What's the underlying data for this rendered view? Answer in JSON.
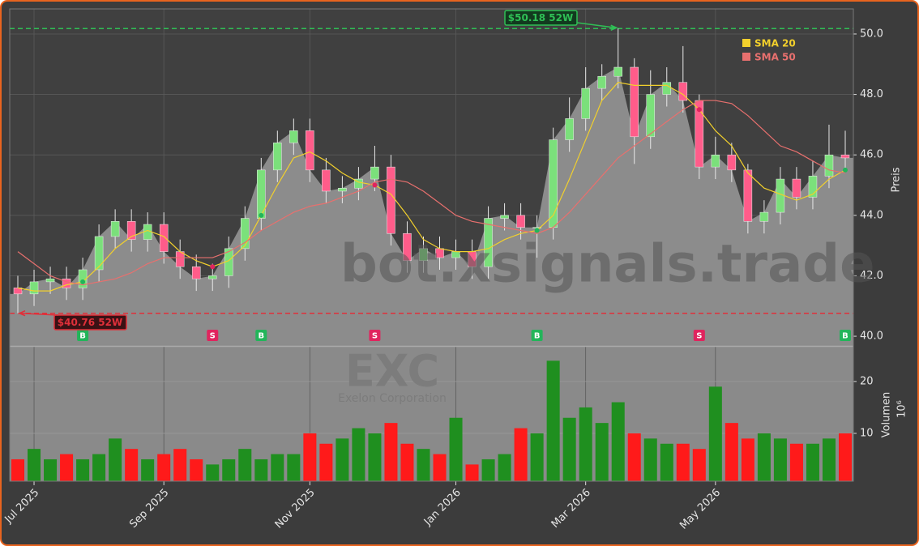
{
  "chart_data": {
    "type": "candlestick",
    "watermark": "bot.xsignals.trade",
    "categories": [
      null,
      "Jul 2025",
      null,
      null,
      null,
      null,
      null,
      null,
      null,
      "Sep 2025",
      null,
      null,
      null,
      null,
      null,
      null,
      null,
      null,
      "Nov 2025",
      null,
      null,
      null,
      null,
      null,
      null,
      null,
      null,
      "Jan 2026",
      null,
      null,
      null,
      null,
      null,
      null,
      null,
      "Mar 2026",
      null,
      null,
      null,
      null,
      null,
      null,
      null,
      "May 2026",
      null,
      null,
      null,
      null,
      null,
      null,
      null,
      null
    ],
    "open": [
      41.6,
      41.4,
      41.8,
      41.9,
      41.6,
      42.2,
      43.3,
      43.8,
      43.2,
      43.7,
      42.8,
      42.3,
      41.9,
      42.0,
      42.9,
      43.9,
      45.5,
      46.4,
      46.8,
      45.5,
      44.8,
      44.9,
      45.2,
      45.6,
      43.4,
      42.5,
      42.9,
      42.6,
      42.8,
      42.3,
      43.9,
      44.0,
      43.6,
      43.6,
      46.5,
      47.2,
      48.2,
      48.6,
      48.9,
      46.6,
      48.0,
      48.4,
      47.8,
      45.6,
      46.0,
      45.5,
      43.8,
      44.1,
      45.2,
      44.6,
      45.3,
      46.0
    ],
    "high": [
      42.0,
      42.2,
      42.3,
      42.3,
      42.6,
      43.7,
      44.2,
      44.2,
      44.1,
      44.1,
      43.2,
      42.7,
      42.4,
      43.3,
      44.3,
      45.9,
      46.8,
      47.2,
      47.2,
      45.9,
      45.3,
      45.6,
      46.3,
      46.0,
      43.8,
      43.3,
      43.3,
      43.2,
      43.2,
      44.3,
      44.4,
      44.4,
      44.0,
      46.9,
      47.9,
      48.9,
      49.0,
      50.18,
      49.2,
      48.8,
      48.9,
      49.6,
      48.0,
      46.6,
      46.4,
      45.7,
      44.5,
      45.6,
      45.6,
      45.8,
      47.0,
      46.8
    ],
    "low": [
      40.76,
      41.0,
      41.4,
      41.2,
      41.2,
      41.8,
      42.9,
      42.8,
      42.8,
      42.4,
      41.9,
      41.5,
      41.5,
      41.6,
      42.5,
      43.5,
      45.1,
      46.0,
      45.1,
      44.4,
      44.4,
      44.5,
      44.8,
      43.0,
      42.1,
      42.1,
      42.2,
      42.2,
      41.9,
      41.9,
      43.5,
      43.2,
      42.6,
      43.2,
      46.1,
      46.8,
      47.8,
      48.2,
      45.7,
      46.2,
      47.6,
      47.4,
      45.2,
      45.2,
      45.1,
      43.4,
      43.4,
      43.7,
      44.2,
      44.2,
      44.9,
      45.5
    ],
    "close": [
      41.4,
      41.8,
      41.9,
      41.6,
      42.2,
      43.3,
      43.8,
      43.2,
      43.7,
      42.8,
      42.3,
      41.9,
      42.0,
      42.9,
      43.9,
      45.5,
      46.4,
      46.8,
      45.5,
      44.8,
      44.9,
      45.2,
      45.6,
      43.4,
      42.5,
      42.9,
      42.6,
      42.8,
      42.3,
      43.9,
      44.0,
      43.6,
      43.6,
      46.5,
      47.2,
      48.2,
      48.6,
      48.9,
      46.6,
      48.0,
      48.4,
      47.8,
      45.6,
      46.0,
      45.5,
      43.8,
      44.1,
      45.2,
      44.6,
      45.3,
      46.0,
      45.9
    ],
    "up_color": "#7be07b",
    "down_color": "#ff5c8a",
    "area_color": "#8c8c8c",
    "ylim": [
      39.68,
      50.83
    ],
    "yticks": [
      {
        "value": 40,
        "label": "40.0"
      },
      {
        "value": 42,
        "label": "42.0"
      },
      {
        "value": 44,
        "label": "44.0"
      },
      {
        "value": 46,
        "label": "46.0"
      },
      {
        "value": 48,
        "label": "48.0"
      },
      {
        "value": 50,
        "label": "50.0"
      }
    ],
    "ylabel": "Preis",
    "grid": true,
    "series": [
      {
        "name": "SMA 20",
        "color": "#f2d02c",
        "values": [
          41.6,
          41.5,
          41.5,
          41.7,
          41.8,
          42.3,
          42.9,
          43.3,
          43.5,
          43.3,
          42.8,
          42.5,
          42.3,
          42.5,
          43.0,
          44.0,
          45.0,
          45.9,
          46.1,
          45.8,
          45.4,
          45.1,
          45.0,
          44.7,
          44.0,
          43.2,
          42.9,
          42.8,
          42.8,
          42.9,
          43.2,
          43.4,
          43.5,
          44.0,
          45.2,
          46.5,
          47.8,
          48.4,
          48.3,
          48.3,
          48.3,
          48.0,
          47.5,
          46.8,
          46.3,
          45.4,
          44.9,
          44.7,
          44.5,
          44.7,
          45.2,
          45.5
        ]
      },
      {
        "name": "SMA 50",
        "color": "#e8706e",
        "values": [
          42.8,
          42.4,
          42.0,
          41.8,
          41.7,
          41.8,
          41.9,
          42.1,
          42.4,
          42.6,
          42.6,
          42.6,
          42.6,
          42.8,
          43.1,
          43.5,
          43.8,
          44.1,
          44.3,
          44.4,
          44.6,
          44.8,
          45.1,
          45.2,
          45.1,
          44.8,
          44.4,
          44.0,
          43.8,
          43.7,
          43.6,
          43.5,
          43.4,
          43.6,
          44.1,
          44.7,
          45.3,
          45.9,
          46.3,
          46.7,
          47.1,
          47.5,
          47.8,
          47.8,
          47.7,
          47.3,
          46.8,
          46.3,
          46.1,
          45.8,
          45.5,
          45.4
        ]
      }
    ],
    "high_52w": {
      "value": 50.18,
      "label": "$50.18 52W",
      "color": "#2fbf55"
    },
    "low_52w": {
      "value": 40.76,
      "label": "$40.76 52W",
      "color": "#e0303a"
    },
    "signals": [
      null,
      null,
      null,
      null,
      "B",
      null,
      null,
      null,
      null,
      null,
      null,
      null,
      "S",
      null,
      null,
      "B",
      null,
      null,
      null,
      null,
      null,
      null,
      "S",
      null,
      null,
      null,
      null,
      null,
      null,
      null,
      null,
      null,
      "B",
      null,
      null,
      null,
      null,
      null,
      null,
      null,
      null,
      null,
      "S",
      null,
      null,
      null,
      null,
      null,
      null,
      null,
      null,
      "B"
    ],
    "signal_colors": {
      "B": "#22b55a",
      "S": "#e0245e"
    },
    "volume": {
      "type": "bar",
      "symbol": "EXC",
      "company": "Exelon Corporation",
      "values": [
        5,
        7,
        5,
        6,
        5,
        6,
        9,
        7,
        5,
        6,
        7,
        5,
        4,
        5,
        7,
        5,
        6,
        6,
        10,
        8,
        9,
        11,
        10,
        12,
        8,
        7,
        6,
        13,
        4,
        5,
        6,
        11,
        10,
        24,
        13,
        15,
        12,
        16,
        10,
        9,
        8,
        8,
        7,
        19,
        12,
        9,
        10,
        9,
        8,
        8,
        9,
        10
      ],
      "up_color": "#1f8f1f",
      "down_color": "#ff1a1a",
      "ylim": [
        0.78,
        26.7
      ],
      "yticks": [
        10,
        20
      ],
      "ylabel": "Volumen",
      "unit": "10⁶"
    }
  }
}
